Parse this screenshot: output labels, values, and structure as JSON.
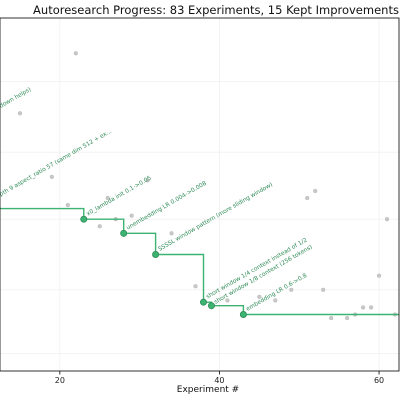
{
  "chart_data": {
    "type": "scatter",
    "title": "Autoresearch Progress: 83 Experiments, 15 Kept Improvements",
    "xlabel": "Experiment #",
    "ylabel": "",
    "xlim": [
      12.5,
      62.5
    ],
    "ylim": [
      0,
      10
    ],
    "xticks": [
      20,
      40,
      60
    ],
    "grid": true,
    "colors": {
      "discarded": "#c8c8c8",
      "kept": "#3cb371",
      "kept_dark": "#2e8b57",
      "annotation": "#2e8b57",
      "frame": "#000000"
    },
    "series": [
      {
        "marker": "small-circle",
        "points": [
          [
            15,
            7.3
          ],
          [
            19,
            5.5
          ],
          [
            21,
            4.7
          ],
          [
            22,
            9.0
          ],
          [
            25,
            4.1
          ],
          [
            26,
            4.9
          ],
          [
            27,
            4.3
          ],
          [
            29,
            4.4
          ],
          [
            31,
            5.4
          ],
          [
            34,
            3.9
          ],
          [
            37,
            2.4
          ],
          [
            41,
            2.0
          ],
          [
            43,
            1.6
          ],
          [
            45,
            2.1
          ],
          [
            47,
            2.0
          ],
          [
            49,
            2.3
          ],
          [
            51,
            4.9
          ],
          [
            52,
            5.1
          ],
          [
            53,
            2.3
          ],
          [
            54,
            1.5
          ],
          [
            56,
            1.5
          ],
          [
            57,
            1.6
          ],
          [
            58,
            1.8
          ],
          [
            59,
            1.8
          ],
          [
            60,
            2.7
          ],
          [
            61,
            4.3
          ],
          [
            62,
            1.6
          ]
        ]
      },
      {
        "marker": "large-circle",
        "points": [
          [
            23,
            4.3
          ],
          [
            28,
            3.9
          ],
          [
            32,
            3.3
          ],
          [
            38,
            1.95
          ],
          [
            39,
            1.85
          ],
          [
            43,
            1.6
          ]
        ]
      }
    ],
    "step_line": [
      [
        12.5,
        4.6
      ],
      [
        23,
        4.6
      ],
      [
        23,
        4.3
      ],
      [
        28,
        4.3
      ],
      [
        28,
        3.9
      ],
      [
        32,
        3.9
      ],
      [
        32,
        3.3
      ],
      [
        38,
        3.3
      ],
      [
        38,
        1.95
      ],
      [
        39,
        1.95
      ],
      [
        39,
        1.85
      ],
      [
        43,
        1.85
      ],
      [
        43,
        1.6
      ],
      [
        62.5,
        1.6
      ]
    ],
    "annotations": [
      {
        "text": "down helps)",
        "x": 12.6,
        "y": 7.45
      },
      {
        "text": "pth 9 aspect_ratio 57 (same dim 512 + ex...",
        "x": 12.6,
        "y": 4.95
      },
      {
        "text": "x0_lambda init 0.1->0.05",
        "x": 23.5,
        "y": 4.4
      },
      {
        "text": "unembedding LR 0.004->0.008",
        "x": 28.5,
        "y": 4.0
      },
      {
        "text": "SSSSL window pattern (more sliding window)",
        "x": 32.5,
        "y": 3.4
      },
      {
        "text": "short window 1/4 context instead of 1/2",
        "x": 38.5,
        "y": 2.05
      },
      {
        "text": "short window 1/8 context (256 tokens)",
        "x": 39.5,
        "y": 1.9
      },
      {
        "text": "embedding LR 0.6->0.8",
        "x": 43.5,
        "y": 1.7
      }
    ]
  }
}
